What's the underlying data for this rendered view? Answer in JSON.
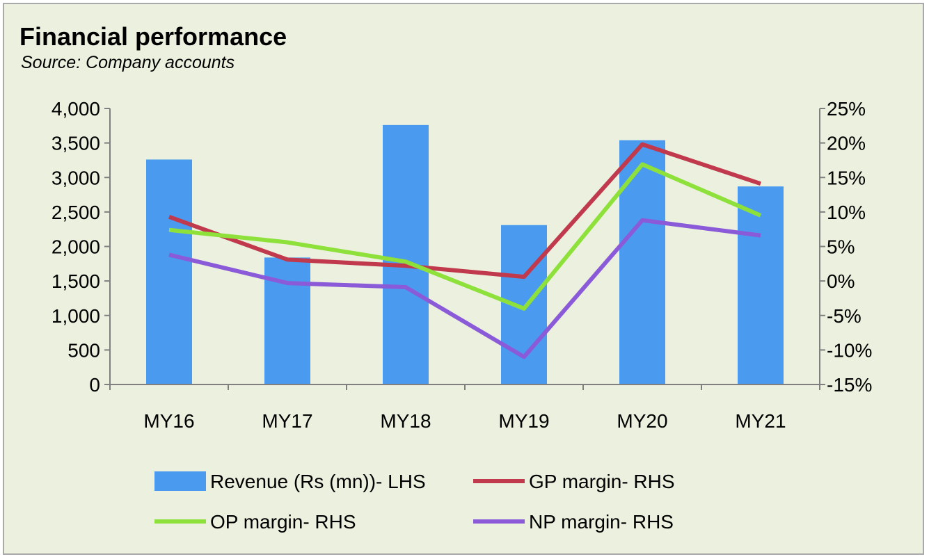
{
  "header": {
    "title": "Financial performance",
    "subtitle": "Source: Company accounts"
  },
  "chart_data": {
    "type": "bar",
    "categories": [
      "MY16",
      "MY17",
      "MY18",
      "MY19",
      "MY20",
      "MY21"
    ],
    "y_left": {
      "ylim": [
        0,
        4000
      ],
      "ticks": [
        0,
        500,
        1000,
        1500,
        2000,
        2500,
        3000,
        3500,
        4000
      ],
      "tick_labels": [
        "0",
        "500",
        "1,000",
        "1,500",
        "2,000",
        "2,500",
        "3,000",
        "3,500",
        "4,000"
      ]
    },
    "y_right": {
      "ylim": [
        -15,
        25
      ],
      "ticks": [
        -15,
        -10,
        -5,
        0,
        5,
        10,
        15,
        20,
        25
      ],
      "tick_labels": [
        "-15%",
        "-10%",
        "-5%",
        "0%",
        "5%",
        "10%",
        "15%",
        "20%",
        "25%"
      ]
    },
    "bar_series": {
      "name": "Revenue (Rs (mn))- LHS",
      "axis": "left",
      "color": "#4a9bf0",
      "values": [
        3260,
        1840,
        3760,
        2310,
        3540,
        2870
      ]
    },
    "line_series": [
      {
        "name": "GP margin- RHS",
        "axis": "right",
        "color": "#c0394d",
        "values": [
          9.3,
          3.1,
          2.2,
          0.6,
          19.8,
          14.1
        ]
      },
      {
        "name": "OP margin- RHS",
        "axis": "right",
        "color": "#8ee03a",
        "values": [
          7.4,
          5.6,
          2.8,
          -4.0,
          16.9,
          9.5
        ]
      },
      {
        "name": "NP margin- RHS",
        "axis": "right",
        "color": "#8a5ad8",
        "values": [
          3.8,
          -0.3,
          -0.9,
          -11.0,
          8.8,
          6.6
        ]
      }
    ],
    "grid": false,
    "legend_position": "bottom"
  }
}
